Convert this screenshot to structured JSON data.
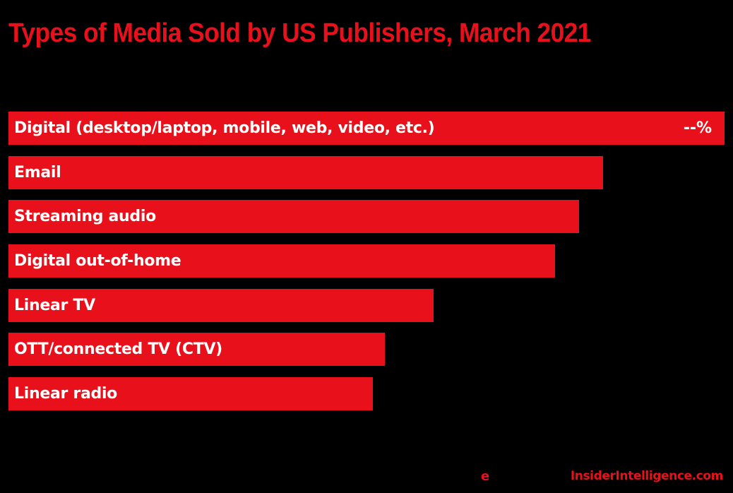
{
  "chart_data": {
    "type": "bar",
    "orientation": "horizontal",
    "title": "Types of Media Sold by US Publishers, March 2021",
    "xlabel": "",
    "ylabel": "",
    "grid": false,
    "legend": null,
    "unit": "% (relative bar length; only the top value label is shown, as \"--%\")",
    "categories": [
      "Digital (desktop/laptop, mobile, web, video, etc.)",
      "Email",
      "Streaming audio",
      "Digital out-of-home",
      "Linear TV",
      "OTT/connected TV (CTV)",
      "Linear radio"
    ],
    "values": [
      100,
      83,
      79.7,
      76.3,
      59.4,
      52.6,
      50.9
    ],
    "value_labels": [
      "--%",
      "",
      "",
      "",
      "",
      "",
      ""
    ],
    "xlim": [
      0,
      100
    ]
  },
  "title": "Types of Media Sold by US Publishers, March 2021",
  "bars": [
    {
      "label": "Digital (desktop/laptop, mobile, web, video, etc.)",
      "value_label": "--%",
      "width_pct": 100
    },
    {
      "label": "Email",
      "value_label": "",
      "width_pct": 83
    },
    {
      "label": "Streaming audio",
      "value_label": "",
      "width_pct": 79.7
    },
    {
      "label": "Digital out-of-home",
      "value_label": "",
      "width_pct": 76.3
    },
    {
      "label": "Linear TV",
      "value_label": "",
      "width_pct": 59.4
    },
    {
      "label": "OTT/connected TV (CTV)",
      "value_label": "",
      "width_pct": 52.6
    },
    {
      "label": "Linear radio",
      "value_label": "",
      "width_pct": 50.9
    }
  ],
  "footer": {
    "logo_letter": "e",
    "brand": "InsiderIntelligence.com"
  },
  "colors": {
    "background": "#000000",
    "accent": "#e8111b",
    "bar_text": "#ffffff"
  }
}
